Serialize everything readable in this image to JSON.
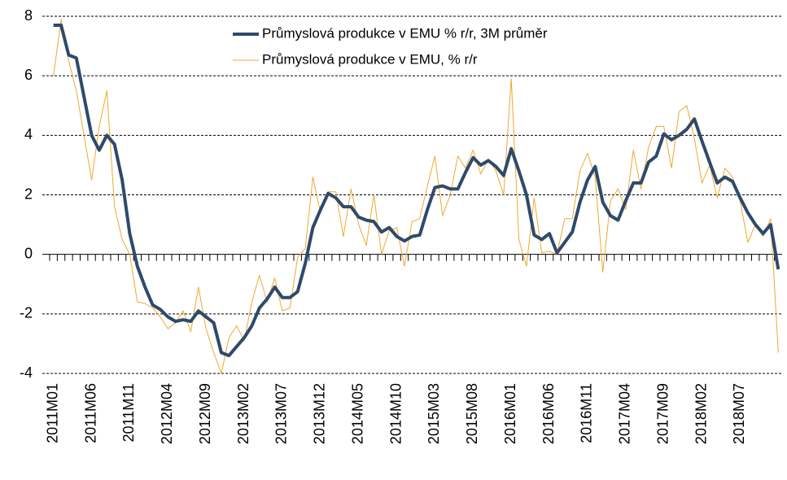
{
  "chart_data": {
    "type": "line",
    "categories": [
      "2011M01",
      null,
      null,
      null,
      null,
      "2011M06",
      null,
      null,
      null,
      null,
      "2011M11",
      null,
      null,
      null,
      null,
      "2012M04",
      null,
      null,
      null,
      null,
      "2012M09",
      null,
      null,
      null,
      null,
      "2013M02",
      null,
      null,
      null,
      null,
      "2013M07",
      null,
      null,
      null,
      null,
      "2013M12",
      null,
      null,
      null,
      null,
      "2014M05",
      null,
      null,
      null,
      null,
      "2014M10",
      null,
      null,
      null,
      null,
      "2015M03",
      null,
      null,
      null,
      null,
      "2015M08",
      null,
      null,
      null,
      null,
      "2016M01",
      null,
      null,
      null,
      null,
      "2016M06",
      null,
      null,
      null,
      null,
      "2016M11",
      null,
      null,
      null,
      null,
      "2017M04",
      null,
      null,
      null,
      null,
      "2017M09",
      null,
      null,
      null,
      null,
      "2018M02",
      null,
      null,
      null,
      null,
      "2018M07",
      null,
      null,
      null,
      null,
      null
    ],
    "series": [
      {
        "name": "Průmyslová produkce v EMU % r/r, 3M průměr",
        "color": "#2e4a6b",
        "width": 4,
        "values": [
          7.7,
          7.7,
          6.7,
          6.6,
          5.3,
          4.0,
          3.5,
          4.0,
          3.7,
          2.5,
          0.7,
          -0.4,
          -1.1,
          -1.7,
          -1.85,
          -2.1,
          -2.25,
          -2.2,
          -2.25,
          -1.9,
          -2.1,
          -2.3,
          -3.3,
          -3.4,
          -3.1,
          -2.8,
          -2.4,
          -1.8,
          -1.5,
          -1.1,
          -1.45,
          -1.45,
          -1.25,
          -0.3,
          0.9,
          1.5,
          2.05,
          1.9,
          1.6,
          1.6,
          1.25,
          1.15,
          1.1,
          0.75,
          0.9,
          0.6,
          0.45,
          0.6,
          0.65,
          1.5,
          2.25,
          2.3,
          2.2,
          2.2,
          2.75,
          3.25,
          3.0,
          3.15,
          2.95,
          2.65,
          3.55,
          2.8,
          2.0,
          0.65,
          0.5,
          0.7,
          0.05,
          0.4,
          0.75,
          1.75,
          2.5,
          2.95,
          1.75,
          1.3,
          1.15,
          1.8,
          2.4,
          2.4,
          3.1,
          3.3,
          4.05,
          3.85,
          4.0,
          4.2,
          4.55,
          3.8,
          3.1,
          2.4,
          2.6,
          2.45,
          1.9,
          1.4,
          1.0,
          0.7,
          1.0,
          -0.5
        ]
      },
      {
        "name": "Průmyslová produkce v EMU, % r/r",
        "color": "#f0a830",
        "width": 1,
        "values": [
          6.0,
          7.9,
          6.5,
          5.5,
          4.0,
          2.5,
          4.3,
          5.5,
          1.6,
          0.5,
          0.0,
          -1.6,
          -1.65,
          -1.8,
          -2.1,
          -2.5,
          -2.3,
          -1.9,
          -2.6,
          -1.1,
          -2.5,
          -3.3,
          -4.0,
          -2.8,
          -2.4,
          -2.9,
          -1.6,
          -0.7,
          -1.6,
          -0.8,
          -1.9,
          -1.8,
          -0.1,
          0.2,
          2.6,
          1.4,
          2.1,
          2.1,
          0.6,
          2.2,
          1.0,
          0.3,
          2.0,
          0.0,
          0.8,
          0.9,
          -0.4,
          1.1,
          1.2,
          2.3,
          3.3,
          1.3,
          2.0,
          3.3,
          2.9,
          3.5,
          2.7,
          3.2,
          2.8,
          2.0,
          5.9,
          0.5,
          -0.4,
          1.9,
          0.05,
          0.1,
          0.0,
          1.2,
          1.2,
          2.8,
          3.4,
          2.6,
          -0.6,
          1.8,
          2.2,
          1.5,
          3.5,
          2.2,
          3.6,
          4.3,
          4.3,
          2.9,
          4.8,
          5.0,
          3.9,
          2.4,
          3.0,
          1.9,
          2.9,
          2.6,
          1.8,
          0.4,
          1.0,
          0.6,
          1.2,
          -3.3
        ]
      }
    ],
    "ylim": [
      -4,
      8
    ],
    "yticks": [
      -4,
      -2,
      0,
      2,
      4,
      6,
      8
    ],
    "grid": true,
    "legend": "top"
  }
}
